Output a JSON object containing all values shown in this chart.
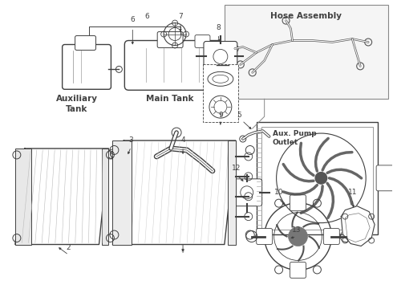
{
  "bg_color": "#ffffff",
  "line_color": "#404040",
  "text_color": "#000000",
  "hose_assembly_label": "Hose Assembly",
  "aux_pump_outlet_label": "Aux. Pump\nOutlet",
  "auxiliary_tank_label": "Auxiliary\nTank",
  "main_tank_label": "Main Tank",
  "font_size_small": 6.5,
  "font_size_label": 7.0,
  "font_size_num": 6.5
}
